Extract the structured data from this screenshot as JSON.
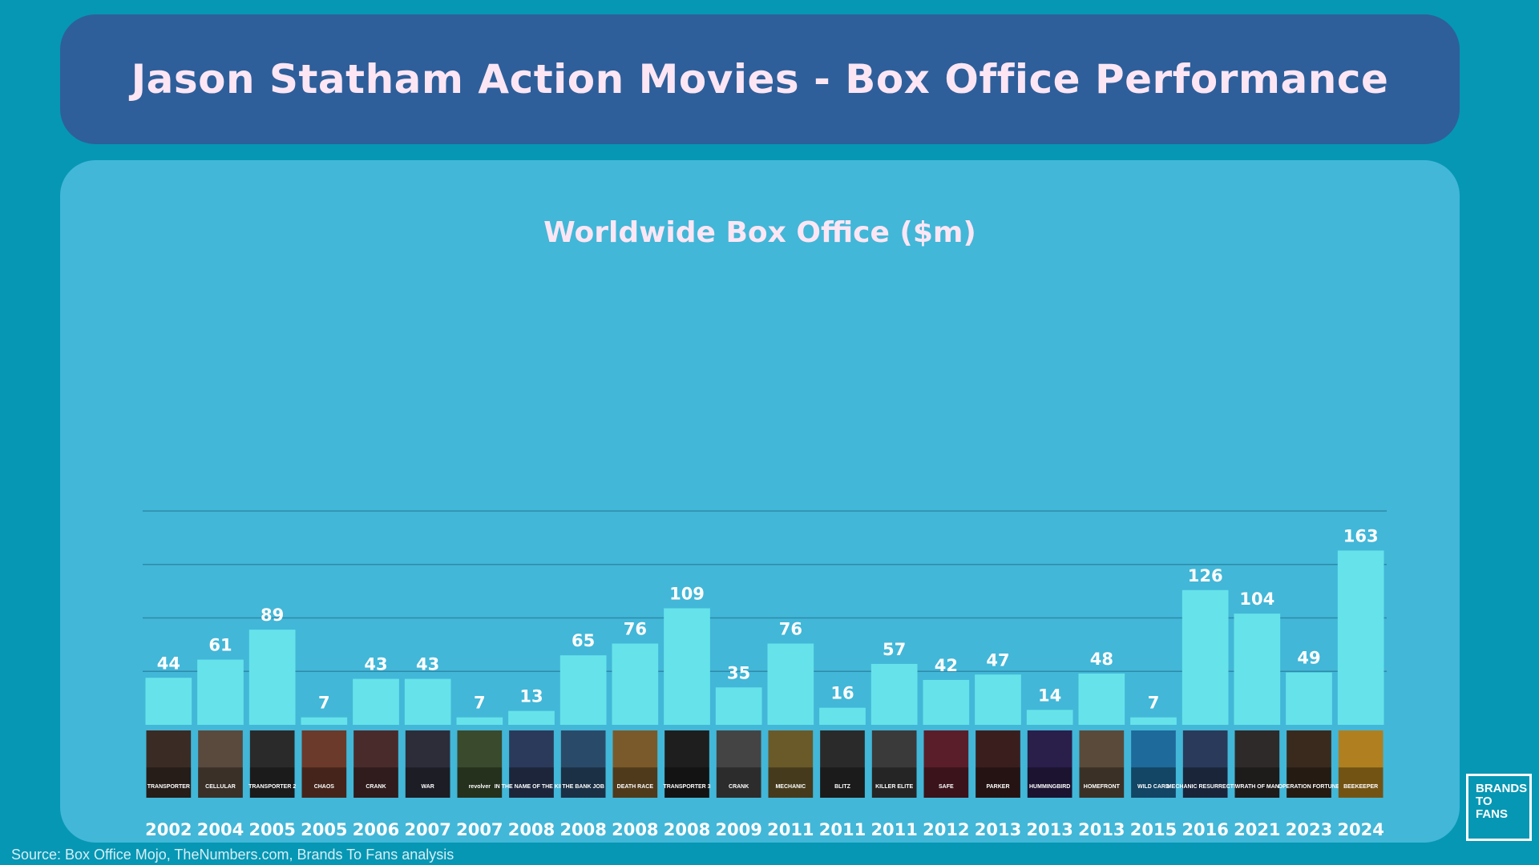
{
  "header": {
    "title": "Jason Statham Action Movies - Box Office Performance"
  },
  "source": "Source:  Box Office Mojo, TheNumbers.com, Brands To Fans analysis",
  "logo": {
    "lines": [
      "BRANDS",
      "TO",
      "FANS"
    ]
  },
  "colors": {
    "background": "#0697b4",
    "title_panel": "#2e5f9a",
    "chart_panel": "#42b7d8",
    "bar": "#66e3ea",
    "gridline": "#2f8aa9",
    "label": "#ffffff"
  },
  "chart_data": {
    "type": "bar",
    "title": "Worldwide Box Office ($m)",
    "xlabel": "",
    "ylabel": "",
    "ylim": [
      0,
      200
    ],
    "gridlines": [
      50,
      100,
      150,
      200
    ],
    "grid": true,
    "legend": "none",
    "categories": [
      "2002",
      "2004",
      "2005",
      "2005",
      "2006",
      "2007",
      "2007",
      "2008",
      "2008",
      "2008",
      "2008",
      "2009",
      "2011",
      "2011",
      "2011",
      "2012",
      "2013",
      "2013",
      "2013",
      "2015",
      "2016",
      "2021",
      "2023",
      "2024"
    ],
    "values": [
      44,
      61,
      89,
      7,
      43,
      43,
      7,
      13,
      65,
      76,
      109,
      35,
      76,
      16,
      57,
      42,
      47,
      14,
      48,
      7,
      126,
      104,
      49,
      163
    ],
    "poster_captions": [
      "TRANSPORTER",
      "CELLULAR",
      "TRANSPORTER 2",
      "CHAOS",
      "CRANK",
      "WAR",
      "revolver",
      "IN THE NAME OF THE KING",
      "THE BANK JOB",
      "DEATH RACE",
      "TRANSPORTER 3",
      "CRANK",
      "MECHANIC",
      "BLITZ",
      "KILLER ELITE",
      "SAFE",
      "PARKER",
      "HUMMINGBIRD",
      "HOMEFRONT",
      "WILD CARD",
      "MECHANIC RESURRECTION",
      "WRATH OF MAN",
      "OPERATION FORTUNE",
      "BEEKEEPER"
    ]
  }
}
